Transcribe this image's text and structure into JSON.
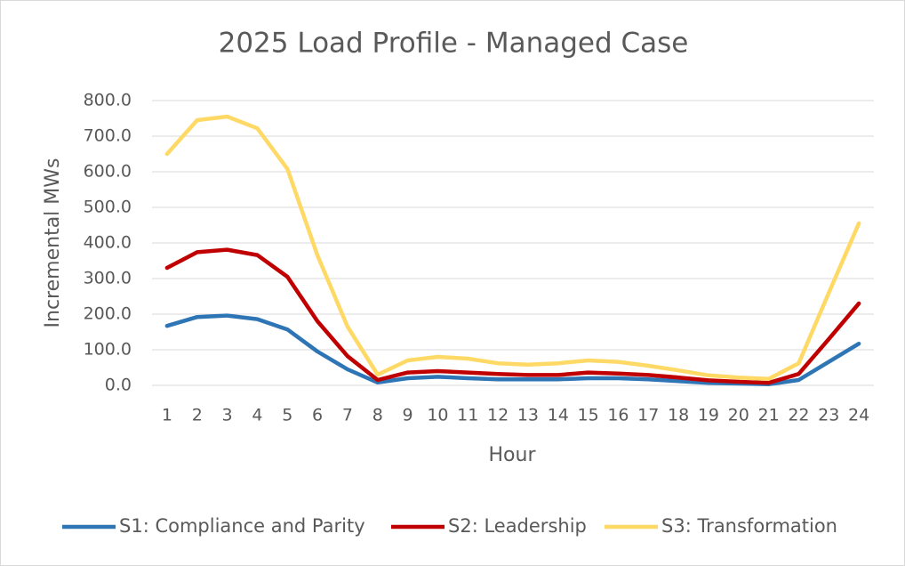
{
  "chart_data": {
    "type": "line",
    "title": "2025 Load Profile - Managed Case",
    "x_label": "Hour",
    "y_label": "Incremental MWs",
    "categories": [
      "1",
      "2",
      "3",
      "4",
      "5",
      "6",
      "7",
      "8",
      "9",
      "10",
      "11",
      "12",
      "13",
      "14",
      "15",
      "16",
      "17",
      "18",
      "19",
      "20",
      "21",
      "22",
      "23",
      "24"
    ],
    "series": [
      {
        "name": "S1: Compliance and Parity",
        "color": "#2e75b6",
        "values": [
          167,
          192,
          196,
          186,
          157,
          95,
          45,
          8,
          20,
          24,
          20,
          17,
          17,
          17,
          20,
          20,
          17,
          12,
          7,
          5,
          3,
          15,
          66,
          117
        ]
      },
      {
        "name": "S2: Leadership",
        "color": "#c00000",
        "values": [
          330,
          374,
          381,
          366,
          305,
          180,
          82,
          15,
          36,
          40,
          36,
          32,
          29,
          29,
          36,
          33,
          29,
          22,
          14,
          10,
          7,
          32,
          130,
          230
        ]
      },
      {
        "name": "S3: Transformation",
        "color": "#ffd966",
        "values": [
          650,
          745,
          755,
          722,
          608,
          365,
          165,
          30,
          70,
          80,
          75,
          62,
          58,
          62,
          70,
          66,
          55,
          42,
          28,
          22,
          18,
          62,
          260,
          455
        ]
      }
    ],
    "ylim": [
      0,
      800
    ],
    "yticks": [
      {
        "value": 0,
        "label": "0.0"
      },
      {
        "value": 100,
        "label": "100.0"
      },
      {
        "value": 200,
        "label": "200.0"
      },
      {
        "value": 300,
        "label": "300.0"
      },
      {
        "value": 400,
        "label": "400.0"
      },
      {
        "value": 500,
        "label": "500.0"
      },
      {
        "value": 600,
        "label": "600.0"
      },
      {
        "value": 700,
        "label": "700.0"
      },
      {
        "value": 800,
        "label": "800.0"
      }
    ],
    "grid": true,
    "legend": "bottom"
  }
}
